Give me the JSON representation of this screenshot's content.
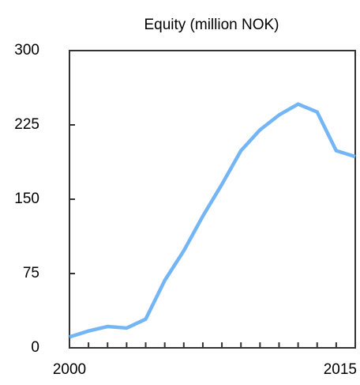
{
  "chart_data": {
    "type": "line",
    "title": "Equity (million NOK)",
    "x": [
      2000,
      2001,
      2002,
      2003,
      2004,
      2005,
      2006,
      2007,
      2008,
      2009,
      2010,
      2011,
      2012,
      2013,
      2014,
      2015
    ],
    "series": [
      {
        "name": "Equity",
        "color": "#74b6f5",
        "values": [
          11,
          17,
          21.5,
          20,
          29,
          68,
          98,
          133,
          165,
          199,
          220,
          235,
          246,
          238,
          199,
          193
        ]
      }
    ],
    "xlim": [
      2000,
      2015
    ],
    "xticks": [
      2000,
      2015
    ],
    "xminorticks": [
      2001,
      2002,
      2003,
      2004,
      2005,
      2006,
      2007,
      2008,
      2009,
      2010,
      2011,
      2012,
      2013,
      2014
    ],
    "ylim": [
      0,
      300
    ],
    "yticks": [
      0,
      75,
      150,
      225,
      300
    ],
    "grid": false
  }
}
